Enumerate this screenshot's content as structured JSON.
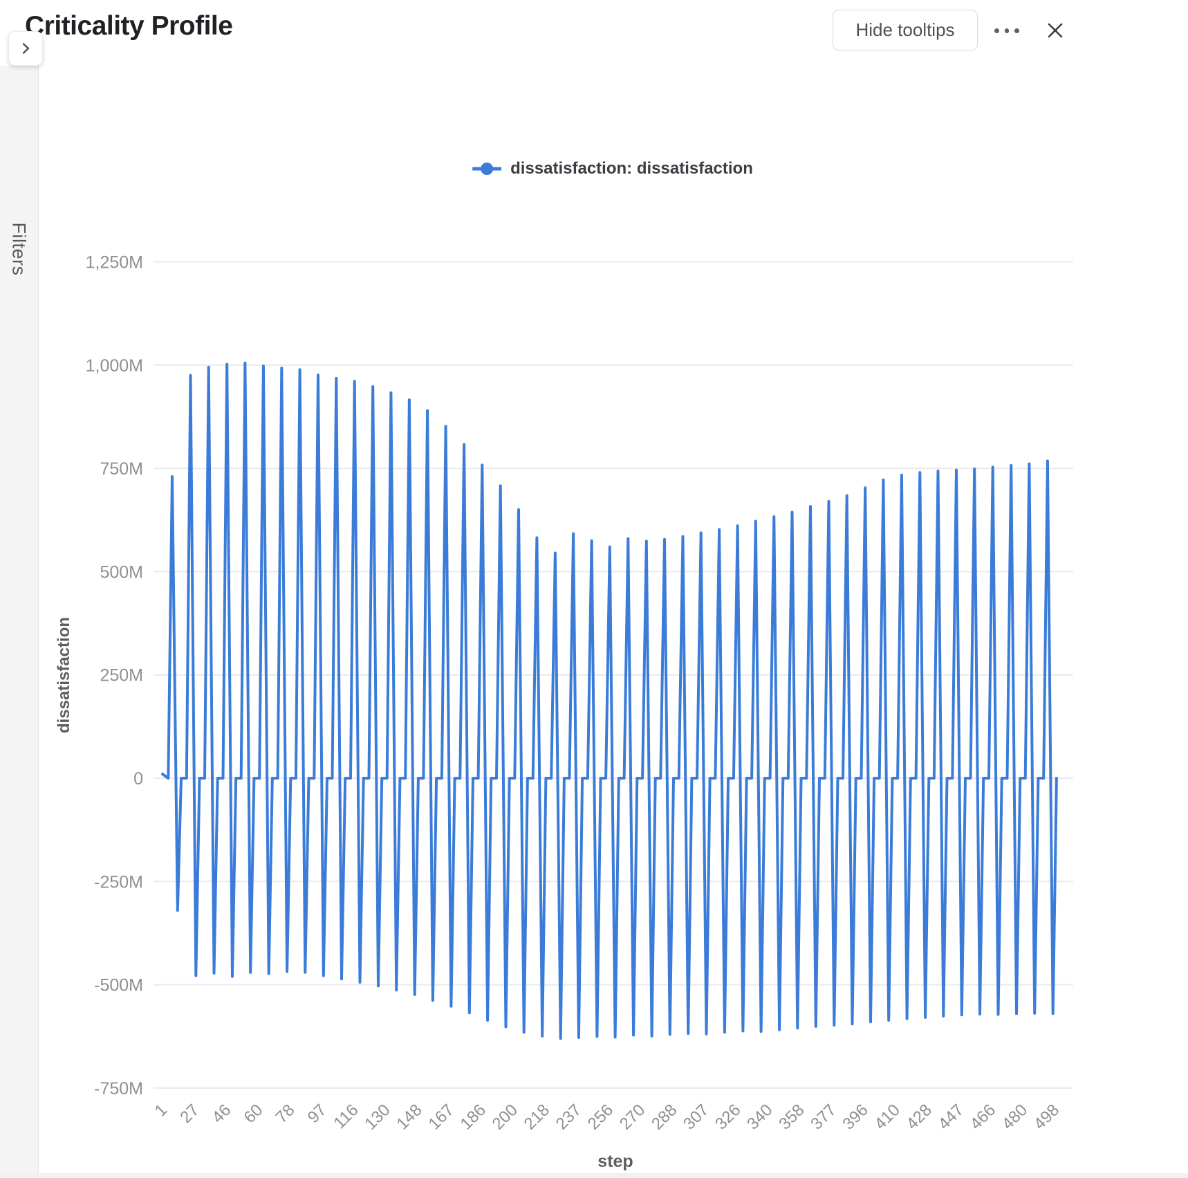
{
  "header": {
    "title": "Criticality Profile",
    "hide_tooltips_label": "Hide tooltips",
    "more_options_icon": "ellipsis-icon",
    "close_icon": "close-icon"
  },
  "sidebar": {
    "filters_label": "Filters",
    "expand_icon": "chevron-right-icon"
  },
  "chart_data": {
    "type": "line",
    "title": "",
    "xlabel": "step",
    "ylabel": "dissatisfaction",
    "value_unit": "millions",
    "xlim": [
      1,
      500
    ],
    "ylim": [
      -750,
      1250
    ],
    "grid": true,
    "legend": {
      "position": "top-center",
      "entries": [
        {
          "label": "dissatisfaction: dissatisfaction",
          "color": "#3b7cd9"
        }
      ]
    },
    "colors": {
      "line": "#3b7cd9",
      "grid": "#e9eaeb",
      "tick_text": "#8d9095",
      "axis_title": "#5b5e62"
    },
    "y_ticks": [
      {
        "value": 1250,
        "label": "1,250M"
      },
      {
        "value": 1000,
        "label": "1,000M"
      },
      {
        "value": 750,
        "label": "750M"
      },
      {
        "value": 500,
        "label": "500M"
      },
      {
        "value": 250,
        "label": "250M"
      },
      {
        "value": 0,
        "label": "0"
      },
      {
        "value": -250,
        "label": "-250M"
      },
      {
        "value": -500,
        "label": "-500M"
      },
      {
        "value": -750,
        "label": "-750M"
      }
    ],
    "x_ticks": [
      "1",
      "27",
      "46",
      "60",
      "78",
      "97",
      "116",
      "130",
      "148",
      "167",
      "186",
      "200",
      "218",
      "237",
      "256",
      "270",
      "288",
      "307",
      "326",
      "340",
      "358",
      "377",
      "396",
      "410",
      "428",
      "447",
      "466",
      "480",
      "498"
    ],
    "series": [
      {
        "name": "dissatisfaction: dissatisfaction",
        "color": "#3b7cd9",
        "points": [
          [
            1,
            10
          ],
          [
            4.2,
            0
          ],
          [
            6.4,
            730
          ],
          [
            9.4,
            -320
          ],
          [
            11.4,
            0
          ],
          [
            14.4,
            0
          ],
          [
            16.6,
            975
          ],
          [
            19.6,
            -478
          ],
          [
            21.6,
            0
          ],
          [
            24.5,
            0
          ],
          [
            26.7,
            995
          ],
          [
            29.7,
            -472
          ],
          [
            31.7,
            0
          ],
          [
            34.7,
            0
          ],
          [
            36.9,
            1002
          ],
          [
            39.9,
            -480
          ],
          [
            41.9,
            0
          ],
          [
            44.8,
            0
          ],
          [
            47,
            1005
          ],
          [
            50,
            -470
          ],
          [
            52,
            0
          ],
          [
            55,
            0
          ],
          [
            57.2,
            998
          ],
          [
            60.2,
            -473
          ],
          [
            62.2,
            0
          ],
          [
            65.2,
            0
          ],
          [
            67.4,
            993
          ],
          [
            70.4,
            -468
          ],
          [
            72.4,
            0
          ],
          [
            75.3,
            0
          ],
          [
            77.5,
            989
          ],
          [
            80.5,
            -470
          ],
          [
            82.5,
            0
          ],
          [
            85.5,
            0
          ],
          [
            87.7,
            976
          ],
          [
            90.7,
            -478
          ],
          [
            92.7,
            0
          ],
          [
            95.6,
            0
          ],
          [
            97.8,
            968
          ],
          [
            100.8,
            -486
          ],
          [
            102.8,
            0
          ],
          [
            105.8,
            0
          ],
          [
            108,
            961
          ],
          [
            111,
            -494
          ],
          [
            113,
            0
          ],
          [
            116,
            0
          ],
          [
            118.2,
            948
          ],
          [
            121.2,
            -503
          ],
          [
            123.2,
            0
          ],
          [
            126.1,
            0
          ],
          [
            128.3,
            933
          ],
          [
            131.3,
            -513
          ],
          [
            133.3,
            0
          ],
          [
            136.3,
            0
          ],
          [
            138.5,
            916
          ],
          [
            141.5,
            -524
          ],
          [
            143.5,
            0
          ],
          [
            146.4,
            0
          ],
          [
            148.6,
            890
          ],
          [
            151.6,
            -538
          ],
          [
            153.6,
            0
          ],
          [
            156.6,
            0
          ],
          [
            158.8,
            852
          ],
          [
            161.8,
            -552
          ],
          [
            163.8,
            0
          ],
          [
            166.8,
            0
          ],
          [
            169,
            808
          ],
          [
            172,
            -568
          ],
          [
            174,
            0
          ],
          [
            176.9,
            0
          ],
          [
            179.1,
            758
          ],
          [
            182.1,
            -586
          ],
          [
            184.1,
            0
          ],
          [
            187.1,
            0
          ],
          [
            189.3,
            708
          ],
          [
            192.3,
            -602
          ],
          [
            194.3,
            0
          ],
          [
            197.2,
            0
          ],
          [
            199.4,
            650
          ],
          [
            202.4,
            -615
          ],
          [
            204.4,
            0
          ],
          [
            207.4,
            0
          ],
          [
            209.6,
            582
          ],
          [
            212.6,
            -624
          ],
          [
            214.6,
            0
          ],
          [
            217.6,
            0
          ],
          [
            219.8,
            545
          ],
          [
            222.8,
            -630
          ],
          [
            224.8,
            0
          ],
          [
            227.7,
            0
          ],
          [
            229.9,
            592
          ],
          [
            232.9,
            -628
          ],
          [
            234.9,
            0
          ],
          [
            237.9,
            0
          ],
          [
            240.1,
            575
          ],
          [
            243.1,
            -625
          ],
          [
            245.1,
            0
          ],
          [
            248,
            0
          ],
          [
            250.2,
            560
          ],
          [
            253.2,
            -627
          ],
          [
            255.2,
            0
          ],
          [
            258.2,
            0
          ],
          [
            260.4,
            580
          ],
          [
            263.4,
            -622
          ],
          [
            265.4,
            0
          ],
          [
            268.4,
            0
          ],
          [
            270.6,
            574
          ],
          [
            273.6,
            -624
          ],
          [
            275.6,
            0
          ],
          [
            278.5,
            0
          ],
          [
            280.7,
            578
          ],
          [
            283.7,
            -620
          ],
          [
            285.7,
            0
          ],
          [
            288.7,
            0
          ],
          [
            290.9,
            585
          ],
          [
            293.9,
            -618
          ],
          [
            295.9,
            0
          ],
          [
            298.8,
            0
          ],
          [
            301,
            594
          ],
          [
            304,
            -619
          ],
          [
            306,
            0
          ],
          [
            309,
            0
          ],
          [
            311.2,
            602
          ],
          [
            314.2,
            -615
          ],
          [
            316.2,
            0
          ],
          [
            319.2,
            0
          ],
          [
            321.4,
            611
          ],
          [
            324.4,
            -612
          ],
          [
            326.4,
            0
          ],
          [
            329.3,
            0
          ],
          [
            331.5,
            622
          ],
          [
            334.5,
            -613
          ],
          [
            336.5,
            0
          ],
          [
            339.5,
            0
          ],
          [
            341.7,
            633
          ],
          [
            344.7,
            -609
          ],
          [
            346.7,
            0
          ],
          [
            349.6,
            0
          ],
          [
            351.8,
            644
          ],
          [
            354.8,
            -605
          ],
          [
            356.8,
            0
          ],
          [
            359.8,
            0
          ],
          [
            362,
            658
          ],
          [
            365,
            -601
          ],
          [
            367,
            0
          ],
          [
            370,
            0
          ],
          [
            372.2,
            670
          ],
          [
            375.2,
            -598
          ],
          [
            377.2,
            0
          ],
          [
            380.1,
            0
          ],
          [
            382.3,
            684
          ],
          [
            385.3,
            -595
          ],
          [
            387.3,
            0
          ],
          [
            390.3,
            0
          ],
          [
            392.5,
            703
          ],
          [
            395.5,
            -590
          ],
          [
            397.5,
            0
          ],
          [
            400.4,
            0
          ],
          [
            402.6,
            722
          ],
          [
            405.6,
            -586
          ],
          [
            407.6,
            0
          ],
          [
            410.6,
            0
          ],
          [
            412.8,
            734
          ],
          [
            415.8,
            -582
          ],
          [
            417.8,
            0
          ],
          [
            420.8,
            0
          ],
          [
            423,
            740
          ],
          [
            426,
            -579
          ],
          [
            428,
            0
          ],
          [
            430.9,
            0
          ],
          [
            433.1,
            744
          ],
          [
            436.1,
            -576
          ],
          [
            438.1,
            0
          ],
          [
            441.1,
            0
          ],
          [
            443.3,
            746
          ],
          [
            446.3,
            -573
          ],
          [
            448.3,
            0
          ],
          [
            451.2,
            0
          ],
          [
            453.4,
            749
          ],
          [
            456.4,
            -571
          ],
          [
            458.4,
            0
          ],
          [
            461.4,
            0
          ],
          [
            463.6,
            753
          ],
          [
            466.6,
            -572
          ],
          [
            468.6,
            0
          ],
          [
            471.6,
            0
          ],
          [
            473.8,
            757
          ],
          [
            476.8,
            -570
          ],
          [
            478.8,
            0
          ],
          [
            481.7,
            0
          ],
          [
            483.9,
            761
          ],
          [
            486.9,
            -569
          ],
          [
            488.9,
            0
          ],
          [
            491.9,
            0
          ],
          [
            494.1,
            768
          ],
          [
            497.1,
            -570
          ],
          [
            499.1,
            0
          ]
        ]
      }
    ]
  }
}
